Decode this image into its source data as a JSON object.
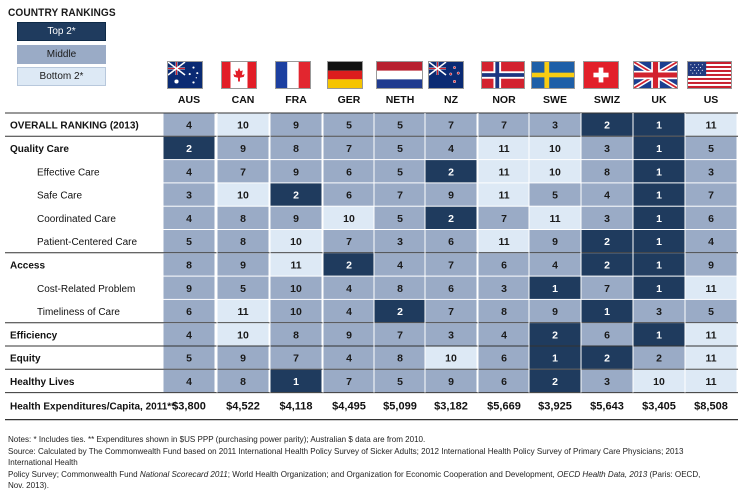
{
  "legend": {
    "title": "COUNTRY RANKINGS",
    "top": "Top 2*",
    "middle": "Middle",
    "bottom": "Bottom 2*"
  },
  "colors": {
    "top": "#1f3b5e",
    "middle": "#9aabc6",
    "bottom": "#dde9f5"
  },
  "flags": [
    "australia-flag",
    "canada-flag",
    "france-flag",
    "germany-flag",
    "netherlands-flag",
    "new-zealand-flag",
    "norway-flag",
    "sweden-flag",
    "switzerland-flag",
    "uk-flag",
    "us-flag"
  ],
  "chart_data": {
    "type": "table",
    "columns": [
      "AUS",
      "CAN",
      "FRA",
      "GER",
      "NETH",
      "NZ",
      "NOR",
      "SWE",
      "SWIZ",
      "UK",
      "US"
    ],
    "rows": [
      {
        "label": "OVERALL RANKING (2013)",
        "style": "header",
        "values": [
          4,
          10,
          9,
          5,
          5,
          7,
          7,
          3,
          2,
          1,
          11
        ]
      },
      {
        "label": "Quality Care",
        "style": "section",
        "values": [
          2,
          9,
          8,
          7,
          5,
          4,
          11,
          10,
          3,
          1,
          5
        ]
      },
      {
        "label": "Effective Care",
        "style": "sub",
        "values": [
          4,
          7,
          9,
          6,
          5,
          2,
          11,
          10,
          8,
          1,
          3
        ]
      },
      {
        "label": "Safe Care",
        "style": "sub",
        "values": [
          3,
          10,
          2,
          6,
          7,
          9,
          11,
          5,
          4,
          1,
          7
        ]
      },
      {
        "label": "Coordinated Care",
        "style": "sub",
        "values": [
          4,
          8,
          9,
          10,
          5,
          2,
          7,
          11,
          3,
          1,
          6
        ]
      },
      {
        "label": "Patient-Centered Care",
        "style": "sub",
        "values": [
          5,
          8,
          10,
          7,
          3,
          6,
          11,
          9,
          2,
          1,
          4
        ]
      },
      {
        "label": "Access",
        "style": "section",
        "values": [
          8,
          9,
          11,
          2,
          4,
          7,
          6,
          4,
          2,
          1,
          9
        ]
      },
      {
        "label": "Cost-Related Problem",
        "style": "sub",
        "values": [
          9,
          5,
          10,
          4,
          8,
          6,
          3,
          1,
          7,
          1,
          11
        ]
      },
      {
        "label": "Timeliness of Care",
        "style": "sub",
        "values": [
          6,
          11,
          10,
          4,
          2,
          7,
          8,
          9,
          1,
          3,
          5
        ]
      },
      {
        "label": "Efficiency",
        "style": "section",
        "values": [
          4,
          10,
          8,
          9,
          7,
          3,
          4,
          2,
          6,
          1,
          11
        ]
      },
      {
        "label": "Equity",
        "style": "section",
        "values": [
          5,
          9,
          7,
          4,
          8,
          10,
          6,
          1,
          2,
          2,
          11
        ]
      },
      {
        "label": "Healthy Lives",
        "style": "section",
        "values": [
          4,
          8,
          1,
          7,
          5,
          9,
          6,
          2,
          3,
          10,
          11
        ]
      }
    ],
    "cell_categories": [
      [
        "m",
        "b",
        "m",
        "m",
        "m",
        "m",
        "m",
        "m",
        "t",
        "t",
        "b"
      ],
      [
        "t",
        "m",
        "m",
        "m",
        "m",
        "m",
        "b",
        "b",
        "m",
        "t",
        "m"
      ],
      [
        "m",
        "m",
        "m",
        "m",
        "m",
        "t",
        "b",
        "b",
        "m",
        "t",
        "m"
      ],
      [
        "m",
        "b",
        "t",
        "m",
        "m",
        "m",
        "b",
        "m",
        "m",
        "t",
        "m"
      ],
      [
        "m",
        "m",
        "m",
        "b",
        "m",
        "t",
        "m",
        "b",
        "m",
        "t",
        "m"
      ],
      [
        "m",
        "m",
        "b",
        "m",
        "m",
        "m",
        "b",
        "m",
        "t",
        "t",
        "m"
      ],
      [
        "m",
        "m",
        "b",
        "t",
        "m",
        "m",
        "m",
        "m",
        "t",
        "t",
        "m"
      ],
      [
        "m",
        "m",
        "m",
        "m",
        "m",
        "m",
        "m",
        "t",
        "m",
        "t",
        "b"
      ],
      [
        "m",
        "b",
        "m",
        "m",
        "t",
        "m",
        "m",
        "m",
        "t",
        "m",
        "m"
      ],
      [
        "m",
        "b",
        "m",
        "m",
        "m",
        "m",
        "m",
        "t",
        "m",
        "t",
        "b"
      ],
      [
        "m",
        "m",
        "m",
        "m",
        "m",
        "b",
        "m",
        "t",
        "t",
        "m",
        "b"
      ],
      [
        "m",
        "m",
        "t",
        "m",
        "m",
        "m",
        "m",
        "t",
        "m",
        "b",
        "b"
      ]
    ],
    "expenditures": {
      "label": "Health Expenditures/Capita, 2011**",
      "values": [
        "$3,800",
        "$4,522",
        "$4,118",
        "$4,495",
        "$5,099",
        "$3,182",
        "$5,669",
        "$3,925",
        "$5,643",
        "$3,405",
        "$8,508"
      ]
    }
  },
  "notes": {
    "line1": "Notes: * Includes ties. ** Expenditures shown in $US PPP (purchasing power parity); Australian $ data are from 2010.",
    "line2": "Source: Calculated by The Commonwealth Fund based on 2011 International Health Policy Survey of Sicker Adults; 2012 International Health Policy Survey of Primary Care Physicians; 2013 International Health",
    "line3a": "Policy Survey; Commonwealth Fund ",
    "line3b": "National Scorecard 2011",
    "line3c": "; World Health Organization; and Organization for Economic Cooperation and Development, ",
    "line3d": "OECD Health Data, 2013",
    "line3e": " (Paris: OECD, Nov. 2013)."
  }
}
